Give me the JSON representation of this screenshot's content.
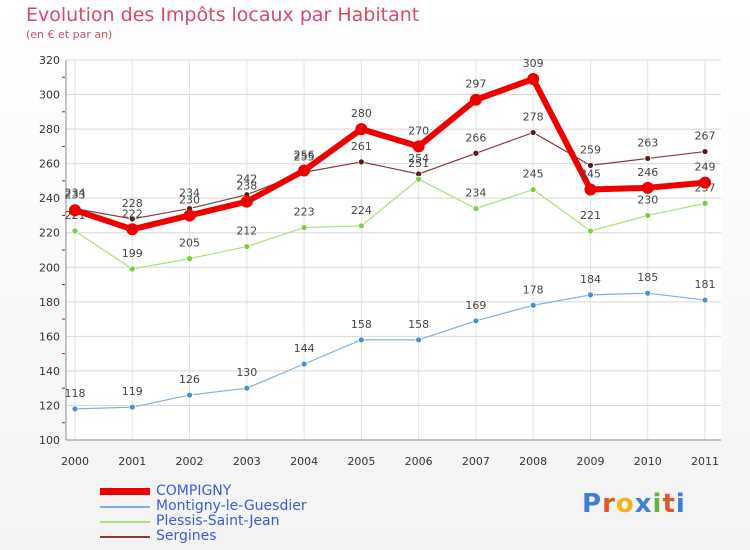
{
  "header": {
    "title": "Evolution des Impôts locaux par Habitant",
    "subtitle": "(en € et par an)"
  },
  "logo": {
    "letters": [
      "P",
      "r",
      "o",
      "x",
      "i",
      "t",
      "i"
    ],
    "colors": [
      "#3b7fd6",
      "#e0572a",
      "#f2b31f",
      "#3b7fd6",
      "#6ab23b",
      "#e0572a",
      "#3b7fd6"
    ]
  },
  "chart_data": {
    "type": "line",
    "title": "Evolution des Impôts locaux par Habitant",
    "subtitle": "(en € et par an)",
    "x": [
      "2000",
      "2001",
      "2002",
      "2003",
      "2004",
      "2005",
      "2006",
      "2007",
      "2008",
      "2009",
      "2010",
      "2011"
    ],
    "ylim": [
      100,
      320
    ],
    "yticks": [
      100,
      120,
      140,
      160,
      180,
      200,
      220,
      240,
      260,
      280,
      300,
      320
    ],
    "grid": true,
    "legend_position": "bottom-left",
    "series": [
      {
        "name": "Sergines",
        "color": "#8b3a3a",
        "marker": "#5a1a1a",
        "width": 1.2,
        "values": [
          234,
          228,
          234,
          242,
          255,
          261,
          254,
          266,
          278,
          259,
          263,
          267
        ]
      },
      {
        "name": "Plessis-Saint-Jean",
        "color": "#a8e27a",
        "marker": "#7ccf3a",
        "width": 1.2,
        "values": [
          221,
          199,
          205,
          212,
          223,
          224,
          251,
          234,
          245,
          221,
          230,
          237
        ]
      },
      {
        "name": "Montigny-le-Guesdier",
        "color": "#7fb0dd",
        "marker": "#4a90d0",
        "width": 1.2,
        "values": [
          118,
          119,
          126,
          130,
          144,
          158,
          158,
          169,
          178,
          184,
          185,
          181
        ]
      },
      {
        "name": "COMPIGNY",
        "color": "#ee0000",
        "marker": "#ee0000",
        "width": 6,
        "values": [
          233,
          222,
          230,
          238,
          256,
          280,
          270,
          297,
          309,
          245,
          246,
          249
        ]
      }
    ],
    "legend_order": [
      "COMPIGNY",
      "Montigny-le-Guesdier",
      "Plessis-Saint-Jean",
      "Sergines"
    ]
  }
}
